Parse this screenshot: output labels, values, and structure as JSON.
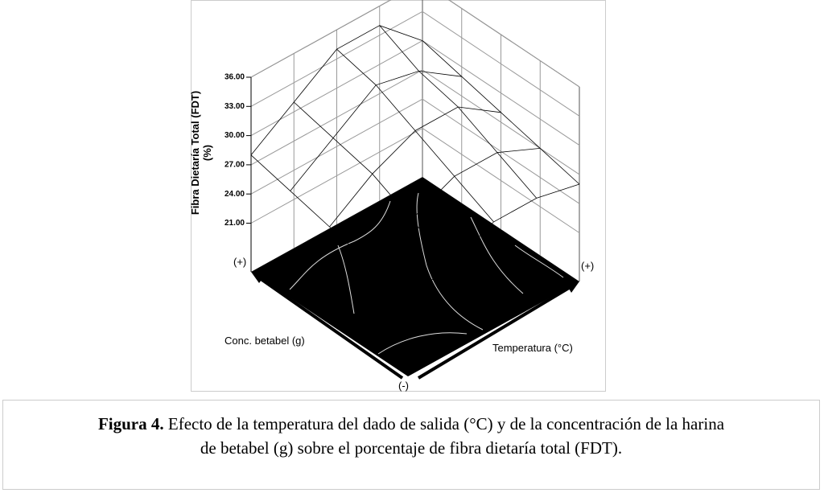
{
  "chart_data": {
    "type": "surface",
    "zlabel": [
      "Fibra Dietaría Total (FDT)",
      "(%)"
    ],
    "xlabel": "Temperatura (°C)",
    "ylabel": "Conc. betabel (g)",
    "x_high_label": "(+)",
    "y_high_label": "(+)",
    "low_label": "(-)",
    "zlim": [
      16,
      36
    ],
    "zticks": [
      {
        "value": 21,
        "label": "21.00"
      },
      {
        "value": 24,
        "label": "24.00"
      },
      {
        "value": 27,
        "label": "27.00"
      },
      {
        "value": 30,
        "label": "30.00"
      },
      {
        "value": 33,
        "label": "33.00"
      },
      {
        "value": 36,
        "label": "36.00"
      }
    ],
    "z": [
      [
        24,
        25,
        27,
        27,
        26
      ],
      [
        25,
        27,
        29,
        29,
        27
      ],
      [
        26,
        29,
        31,
        31,
        28
      ],
      [
        27,
        30,
        33,
        32,
        29
      ],
      [
        28,
        31,
        34,
        34,
        30
      ]
    ],
    "color": "#000000"
  },
  "caption": {
    "label": "Figura 4.",
    "lines": [
      "Efecto de la temperatura del dado de salida (°C) y de la concentración de la harina",
      "de betabel (g) sobre el porcentaje de fibra dietaría total (FDT)."
    ]
  }
}
